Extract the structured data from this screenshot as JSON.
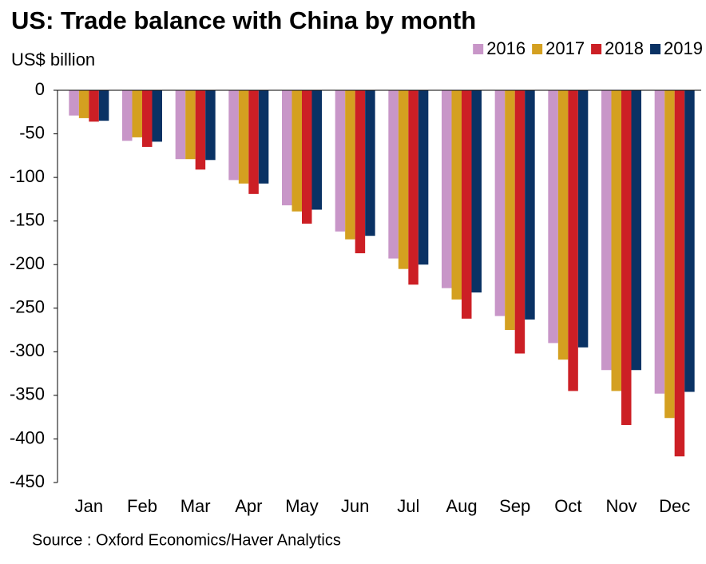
{
  "chart_data": {
    "type": "bar",
    "title": "US: Trade balance with China by month",
    "y_label": "US$ billion",
    "source": "Source : Oxford Economics/Haver Analytics",
    "categories": [
      "Jan",
      "Feb",
      "Mar",
      "Apr",
      "May",
      "Jun",
      "Jul",
      "Aug",
      "Sep",
      "Oct",
      "Nov",
      "Dec"
    ],
    "series": [
      {
        "name": "2016",
        "color": "#c896c8",
        "values": [
          -29,
          -58,
          -79,
          -103,
          -132,
          -162,
          -193,
          -227,
          -259,
          -290,
          -321,
          -348
        ]
      },
      {
        "name": "2017",
        "color": "#d4a020",
        "values": [
          -32,
          -54,
          -79,
          -107,
          -139,
          -171,
          -205,
          -240,
          -275,
          -309,
          -345,
          -376
        ]
      },
      {
        "name": "2018",
        "color": "#cc1f25",
        "values": [
          -36,
          -65,
          -91,
          -119,
          -153,
          -187,
          -223,
          -262,
          -302,
          -345,
          -384,
          -420
        ]
      },
      {
        "name": "2019",
        "color": "#0a3264",
        "values": [
          -35,
          -59,
          -80,
          -107,
          -137,
          -167,
          -200,
          -232,
          -263,
          -295,
          -321,
          -346
        ]
      }
    ],
    "ylim": [
      0,
      -450
    ],
    "yticks": [
      0,
      -50,
      -100,
      -150,
      -200,
      -250,
      -300,
      -350,
      -400,
      -450
    ],
    "grid": false,
    "legend": "top-right"
  }
}
